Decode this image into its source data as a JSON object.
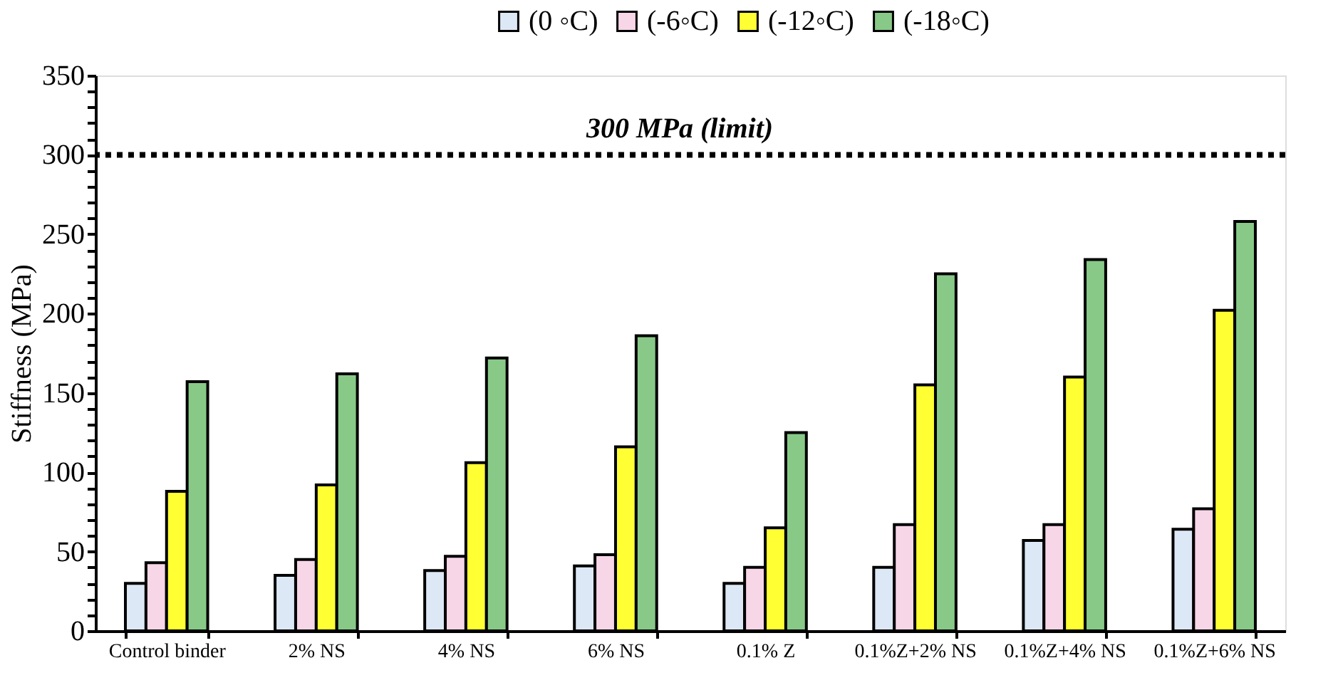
{
  "chart_data": {
    "type": "bar",
    "ylabel": "Stiffness (MPa)",
    "categories": [
      "Control binder",
      "2% NS",
      "4% NS",
      "6% NS",
      "0.1% Z",
      "0.1%Z+2% NS",
      "0.1%Z+4% NS",
      "0.1%Z+6% NS"
    ],
    "series": [
      {
        "name": "(0 ◦C)",
        "color": "#dce8f5",
        "values": [
          30,
          35,
          38,
          41,
          30,
          40,
          57,
          64
        ]
      },
      {
        "name": "(-6◦C)",
        "color": "#f7d6e8",
        "values": [
          43,
          45,
          47,
          48,
          40,
          67,
          67,
          77
        ]
      },
      {
        "name": "(-12◦C)",
        "color": "#ffff33",
        "values": [
          88,
          92,
          106,
          116,
          65,
          155,
          160,
          202
        ]
      },
      {
        "name": "(-18◦C)",
        "color": "#88c987",
        "values": [
          157,
          162,
          172,
          186,
          125,
          225,
          234,
          258
        ]
      }
    ],
    "ylim": [
      0,
      350
    ],
    "yticks": [
      0,
      {
        "value": 10,
        "label": null
      },
      {
        "value": 20,
        "label": null
      },
      {
        "value": 30,
        "label": null
      },
      {
        "value": 40,
        "label": null
      },
      50,
      {
        "value": 60,
        "label": null
      },
      {
        "value": 70,
        "label": null
      },
      {
        "value": 80,
        "label": null
      },
      {
        "value": 90,
        "label": null
      },
      100,
      {
        "value": 110,
        "label": null
      },
      {
        "value": 120,
        "label": null
      },
      {
        "value": 130,
        "label": null
      },
      {
        "value": 140,
        "label": null
      },
      150,
      {
        "value": 160,
        "label": null
      },
      {
        "value": 170,
        "label": null
      },
      {
        "value": 180,
        "label": null
      },
      {
        "value": 190,
        "label": null
      },
      200,
      {
        "value": 210,
        "label": null
      },
      {
        "value": 220,
        "label": null
      },
      {
        "value": 230,
        "label": null
      },
      {
        "value": 240,
        "label": null
      },
      250,
      {
        "value": 260,
        "label": null
      },
      {
        "value": 270,
        "label": null
      },
      {
        "value": 280,
        "label": null
      },
      {
        "value": 290,
        "label": null
      },
      300,
      {
        "value": 310,
        "label": null
      },
      {
        "value": 320,
        "label": null
      },
      {
        "value": 330,
        "label": null
      },
      {
        "value": 340,
        "label": null
      },
      350
    ],
    "ref_lines": [
      {
        "axis": "y",
        "value": 300,
        "label": "300 MPa (limit)",
        "color": "#000000",
        "line_style": "dotted"
      }
    ],
    "grid": false,
    "legend": "top"
  }
}
